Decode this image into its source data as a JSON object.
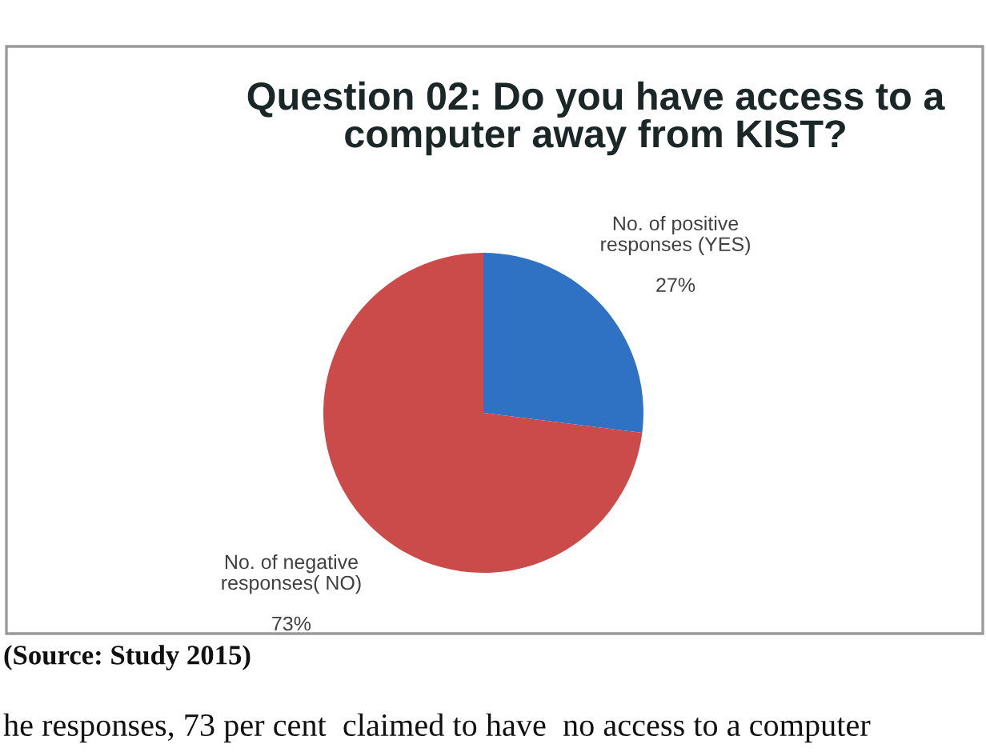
{
  "chart_data": {
    "type": "pie",
    "title": "Question 02: Do you have access to a\ncomputer away from KIST?",
    "categories": [
      "No. of positive\nresponses (YES)",
      "No. of negative\nresponses( NO)"
    ],
    "values": [
      27,
      73
    ],
    "value_labels": [
      "27%",
      "73%"
    ],
    "colors": [
      "#2f72c4",
      "#cb4a4a"
    ],
    "annotations": [
      "(Source: Study 2015)",
      "he responses, 73 per cent  claimed to have  no access to a computer"
    ]
  }
}
